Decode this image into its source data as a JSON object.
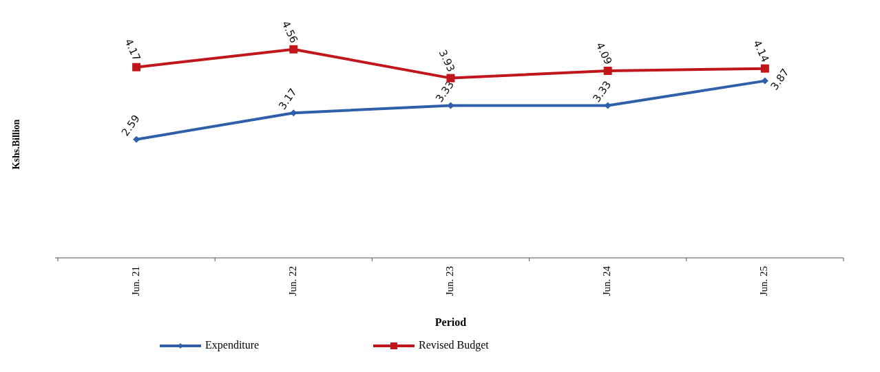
{
  "chart_data": {
    "type": "line",
    "xlabel": "Period",
    "ylabel": "Kshs.Billion",
    "categories": [
      "Jun. 21",
      "Jun. 22",
      "Jun. 23",
      "Jun. 24",
      "Jun. 25"
    ],
    "series": [
      {
        "name": "Expenditure",
        "color": "#2e5fa8",
        "marker": "diamond",
        "values": [
          2.59,
          3.17,
          3.33,
          3.33,
          3.87
        ]
      },
      {
        "name": "Revised Budget",
        "color": "#c0161c",
        "marker": "square",
        "values": [
          4.17,
          4.56,
          3.93,
          4.09,
          4.14
        ]
      }
    ],
    "tick_labels": "x",
    "data_labels": true,
    "legend": "bottom",
    "line_style": "solid"
  }
}
